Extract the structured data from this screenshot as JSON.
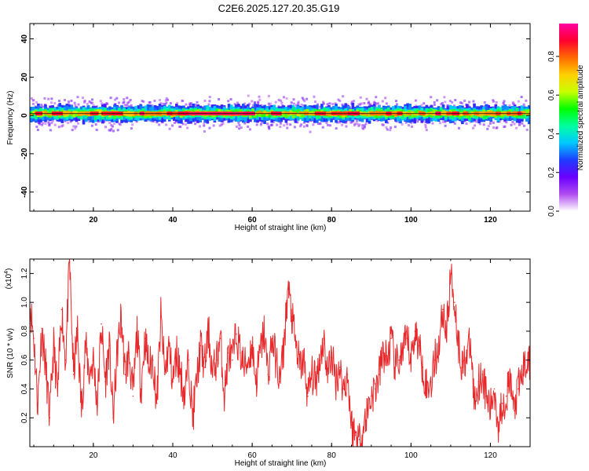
{
  "title": "C2E6.2025.127.20.35.G19",
  "chart_data": [
    {
      "type": "heatmap",
      "xlabel": "Height of straight line (km)",
      "ylabel": "Frequency (Hz)",
      "xlim": [
        4,
        130
      ],
      "ylim": [
        -50,
        48
      ],
      "xticks": [
        20,
        40,
        60,
        80,
        100,
        120
      ],
      "yticks": [
        -40,
        -20,
        0,
        20,
        40
      ],
      "band": {
        "center_freq_hz": 1,
        "half_width_hz": 4,
        "scatter_half_width_hz": 9,
        "peak_amplitude": 0.95
      },
      "colorbar": {
        "label": "Normalized spectral amplitude",
        "range": [
          0,
          0.97
        ],
        "ticks": [
          0.0,
          0.2,
          0.4,
          0.6,
          0.8
        ],
        "tick_labels": [
          "0.0",
          "0.2",
          "0.4",
          "0.6",
          "0.8"
        ],
        "colors": [
          "#ffffff",
          "#b04cf0",
          "#6a00ff",
          "#1e3cff",
          "#00c8ff",
          "#00ffa0",
          "#00ff00",
          "#c8ff00",
          "#ffd000",
          "#ff6a00",
          "#ff0030",
          "#ff00a0"
        ]
      }
    },
    {
      "type": "line",
      "xlabel": "Height of straight line (km)",
      "ylabel": "SNR (10 * v/v)",
      "y_multiplier": "(x10",
      "y_multiplier_exp": "4",
      "y_multiplier_close": ")",
      "xlim": [
        4,
        130
      ],
      "ylim": [
        0,
        13000
      ],
      "xticks": [
        20,
        40,
        60,
        80,
        100,
        120
      ],
      "yticks": [
        2000,
        4000,
        6000,
        8000,
        10000,
        12000
      ],
      "ytick_labels": [
        "0.2",
        "0.4",
        "0.6",
        "0.8",
        "1.0",
        "1.2"
      ],
      "color": "#e8282a",
      "series": [
        {
          "x": [
            4,
            5,
            6,
            7,
            8,
            9,
            10,
            11,
            12,
            13,
            14,
            15,
            16,
            17,
            18,
            19,
            20,
            21,
            22,
            23,
            24,
            25,
            26,
            27,
            28,
            29,
            30,
            31,
            32,
            33,
            34,
            35,
            36,
            37,
            38,
            39,
            40,
            41,
            42,
            43,
            44,
            45,
            46,
            47,
            48,
            49,
            50,
            51,
            52,
            53,
            54,
            55,
            56,
            57,
            58,
            59,
            60,
            61,
            62,
            63,
            64,
            65,
            66,
            67,
            68,
            69,
            70,
            71,
            72,
            73,
            74,
            75,
            76,
            77,
            78,
            79,
            80,
            81,
            82,
            83,
            84,
            85,
            86,
            87,
            88,
            89,
            90,
            91,
            92,
            93,
            94,
            95,
            96,
            97,
            98,
            99,
            100,
            101,
            102,
            103,
            104,
            105,
            106,
            107,
            108,
            109,
            110,
            111,
            112,
            113,
            114,
            115,
            116,
            117,
            118,
            119,
            120,
            121,
            122,
            123,
            124,
            125,
            126,
            127,
            128,
            129,
            130
          ],
          "values": [
            10000,
            7500,
            3000,
            8200,
            5500,
            2000,
            7000,
            3500,
            9500,
            6000,
            12800,
            5000,
            8000,
            2500,
            7000,
            5000,
            6000,
            3000,
            8500,
            4500,
            7000,
            2000,
            6500,
            9000,
            5000,
            6500,
            3500,
            8000,
            4000,
            7500,
            5500,
            6000,
            3000,
            9000,
            5000,
            7000,
            4500,
            6500,
            5000,
            3500,
            6000,
            2000,
            4500,
            7000,
            5500,
            8000,
            5000,
            6000,
            7500,
            3500,
            6500,
            6000,
            7800,
            6500,
            5500,
            6000,
            7000,
            4500,
            6500,
            8000,
            5000,
            7500,
            6000,
            4500,
            7000,
            11000,
            9000,
            7000,
            5500,
            6000,
            3500,
            5000,
            4500,
            6000,
            7500,
            5000,
            6500,
            4500,
            5500,
            4000,
            5000,
            1500,
            800,
            500,
            1200,
            2500,
            3500,
            4000,
            5000,
            6500,
            6000,
            7500,
            5500,
            6000,
            6500,
            7500,
            6000,
            8000,
            7000,
            5500,
            4000,
            4500,
            6000,
            7000,
            9500,
            8000,
            12000,
            10000,
            7000,
            5500,
            6500,
            7000,
            3000,
            4500,
            5000,
            3500,
            2500,
            4000,
            1500,
            3000,
            3500,
            4500,
            2500,
            4000,
            5000,
            6000,
            5500
          ]
        }
      ]
    }
  ]
}
